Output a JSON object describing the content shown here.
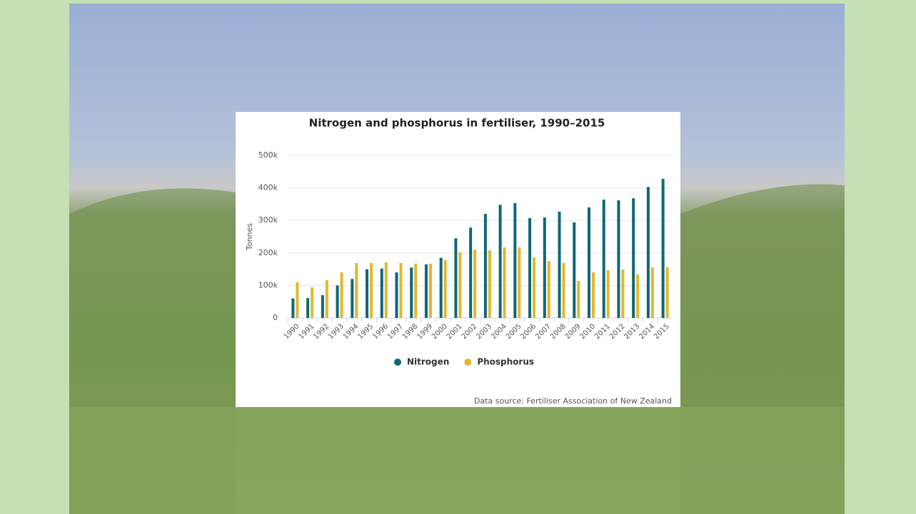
{
  "chart_data": {
    "type": "bar",
    "title": "Nitrogen and phosphorus in fertiliser, 1990–2015",
    "ylabel": "Tonnes",
    "source": "Data source: Fertiliser Association of New Zealand",
    "categories": [
      "1990",
      "1991",
      "1992",
      "1993",
      "1994",
      "1995",
      "1996",
      "1997",
      "1998",
      "1999",
      "2000",
      "2001",
      "2002",
      "2003",
      "2004",
      "2005",
      "2006",
      "2007",
      "2008",
      "2009",
      "2010",
      "2011",
      "2012",
      "2013",
      "2014",
      "2015"
    ],
    "series": [
      {
        "name": "Nitrogen",
        "color": "#0f6777",
        "values": [
          60000,
          61000,
          70000,
          100000,
          120000,
          150000,
          152000,
          140000,
          155000,
          165000,
          185000,
          245000,
          278000,
          320000,
          348000,
          353000,
          307000,
          309000,
          327000,
          294000,
          340000,
          364000,
          362000,
          368000,
          403000,
          428000
        ]
      },
      {
        "name": "Phosphorus",
        "color": "#e3b72e",
        "values": [
          110000,
          94000,
          116000,
          140000,
          169000,
          169000,
          171000,
          169000,
          167000,
          167000,
          178000,
          202000,
          210000,
          208000,
          217000,
          217000,
          186000,
          175000,
          169000,
          114000,
          140000,
          147000,
          149000,
          134000,
          156000,
          156000
        ]
      }
    ],
    "ylim": [
      0,
      500000
    ],
    "yticks": [
      0,
      {
        "value": 100000,
        "label": "100k"
      },
      {
        "value": 200000,
        "label": "200k"
      },
      {
        "value": 300000,
        "label": "300k"
      },
      {
        "value": 400000,
        "label": "400k"
      },
      {
        "value": 500000,
        "label": "500k"
      }
    ],
    "grid": true,
    "legend": "bottom"
  }
}
